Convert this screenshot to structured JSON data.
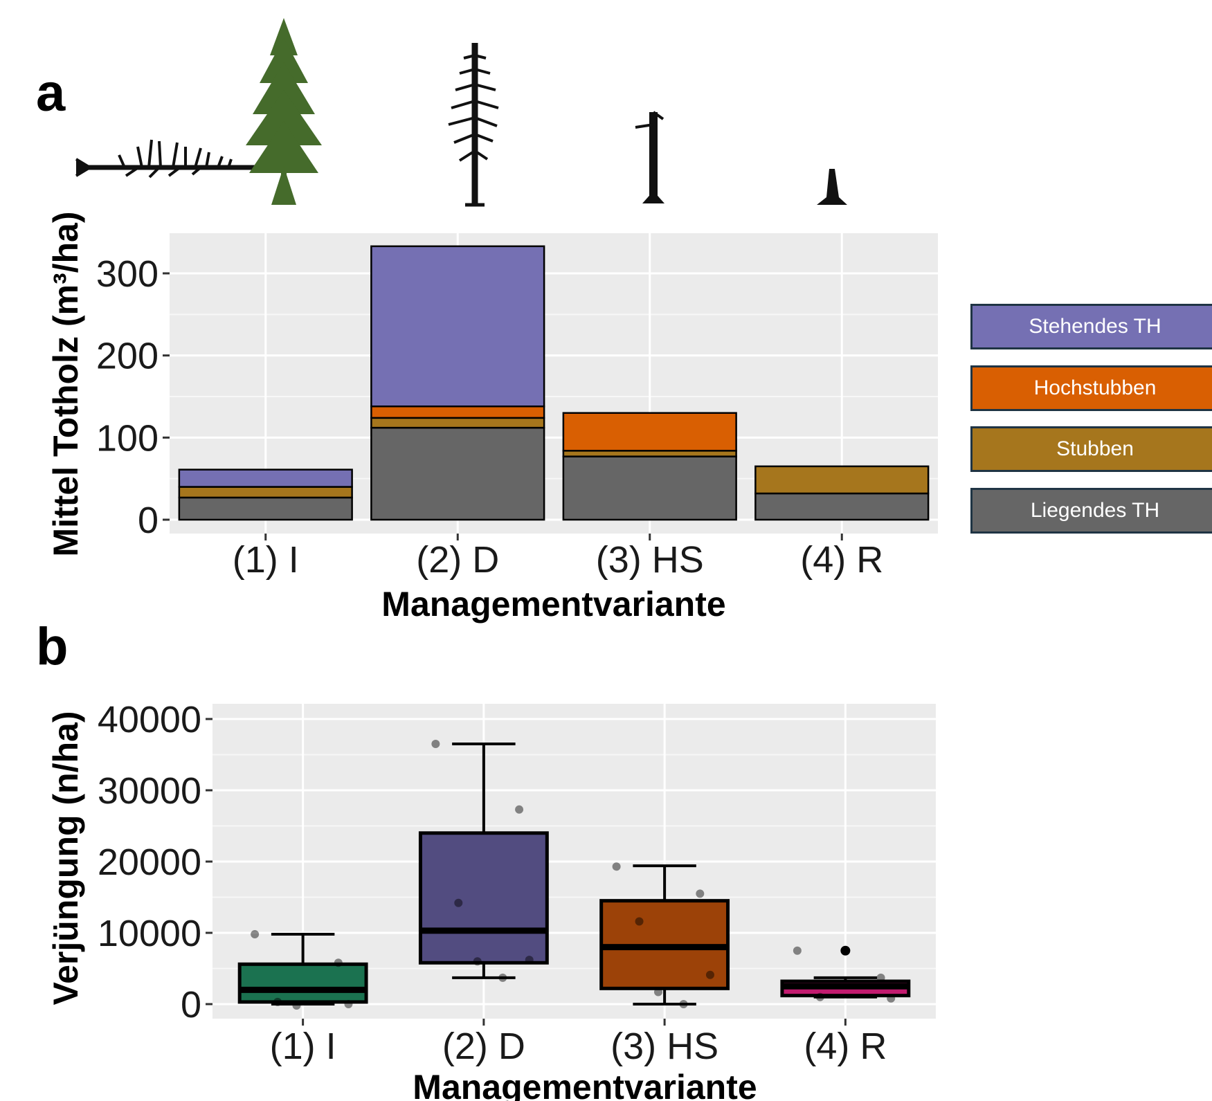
{
  "panel_a_label": "a",
  "panel_b_label": "b",
  "icons": [
    "fallen-tree-icon",
    "living-spruce-icon",
    "dead-standing-tree-icon",
    "high-stump-icon",
    "stump-icon"
  ],
  "chart_data": [
    {
      "type": "bar",
      "stacked": true,
      "xlabel": "Managementvariante",
      "ylabel": "Mittel Totholz (m³/ha)",
      "categories": [
        "(1) I",
        "(2) D",
        "(3) HS",
        "(4) R"
      ],
      "ylim": [
        -16,
        345
      ],
      "yticks": [
        0,
        100,
        200,
        300
      ],
      "grid": true,
      "series": [
        {
          "name": "Liegendes TH",
          "color": "#666666",
          "values": [
            27,
            112,
            77,
            32
          ]
        },
        {
          "name": "Stubben",
          "color": "#a6761d",
          "values": [
            13,
            12,
            7,
            33
          ]
        },
        {
          "name": "Hochstubben",
          "color": "#d95f02",
          "values": [
            0,
            14,
            46,
            0
          ]
        },
        {
          "name": "Stehendes TH",
          "color": "#7570b3",
          "values": [
            21,
            195,
            0,
            0
          ]
        }
      ],
      "legend": {
        "position": "right",
        "items": [
          {
            "label": "Stehendes TH",
            "color": "#7570b3"
          },
          {
            "label": "Hochstubben",
            "color": "#d95f02"
          },
          {
            "label": "Stubben",
            "color": "#a6761d"
          },
          {
            "label": "Liegendes TH",
            "color": "#666666"
          }
        ]
      }
    },
    {
      "type": "box",
      "xlabel": "Managementvariante",
      "ylabel": "Verjüngung (n/ha)",
      "categories": [
        "(1) I",
        "(2) D",
        "(3) HS",
        "(4) R"
      ],
      "ylim": [
        -1800,
        42000
      ],
      "yticks": [
        0,
        10000,
        20000,
        30000,
        40000
      ],
      "grid": true,
      "boxes": [
        {
          "category": "(1) I",
          "color": "#1b7250",
          "q1": 300,
          "median": 2000,
          "q3": 5600,
          "whisker_low": 0,
          "whisker_high": 9800,
          "points": [
            9800,
            5800,
            300,
            0,
            -200
          ]
        },
        {
          "category": "(2) D",
          "color": "#524c80",
          "q1": 5800,
          "median": 10300,
          "q3": 24000,
          "whisker_low": 3700,
          "whisker_high": 36500,
          "points": [
            36500,
            27300,
            14200,
            6200,
            6000,
            3700
          ]
        },
        {
          "category": "(3) HS",
          "color": "#9c4208",
          "q1": 2200,
          "median": 8000,
          "q3": 14500,
          "whisker_low": 0,
          "whisker_high": 19400,
          "points": [
            19300,
            15500,
            11600,
            4100,
            1700,
            0
          ]
        },
        {
          "category": "(4) R",
          "color": "#c21b6f",
          "q1": 1200,
          "median": 2500,
          "q3": 3200,
          "whisker_low": 1000,
          "whisker_high": 3700,
          "outliers": [
            7500
          ],
          "points": [
            7500,
            3700,
            1000,
            800
          ]
        }
      ]
    }
  ]
}
